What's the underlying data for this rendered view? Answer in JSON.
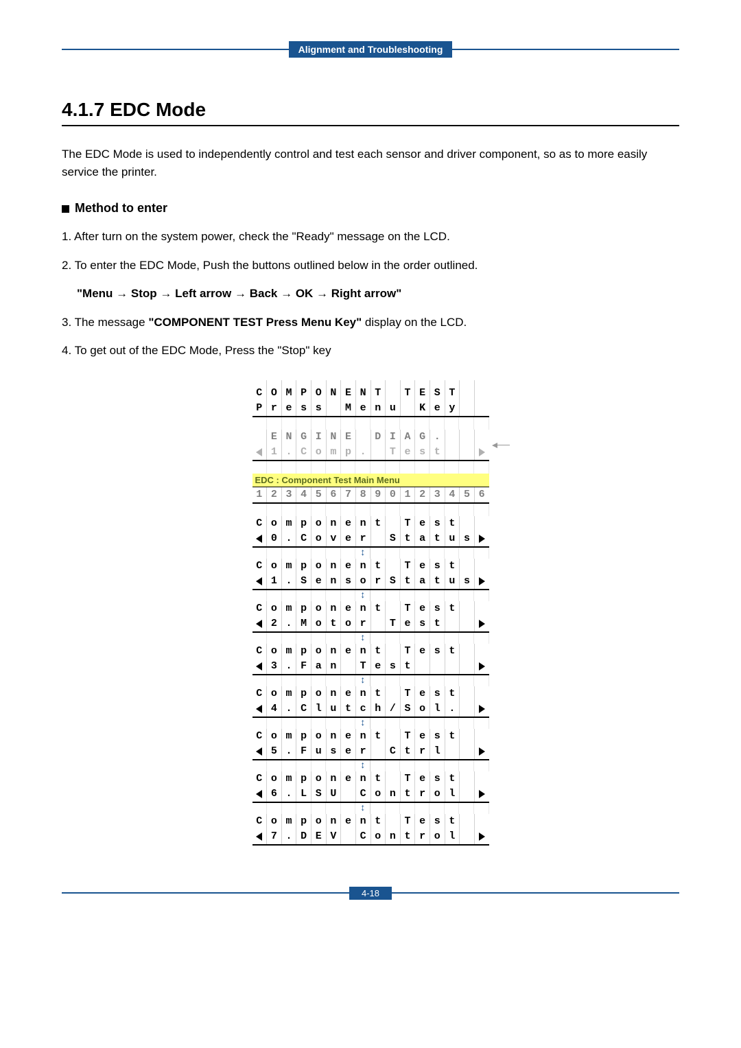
{
  "header": {
    "title": "Alignment and Troubleshooting"
  },
  "section": {
    "number": "4.1.7",
    "title": "EDC Mode",
    "intro": "The EDC Mode is used to independently control and test each sensor and driver component, so as to more easily service the printer."
  },
  "method": {
    "heading": "Method to enter",
    "step1": "1. After turn on the system power, check the \"Ready\" message on the LCD.",
    "step2a": "2. To enter the EDC Mode, Push the buttons outlined below in the order outlined.",
    "step2b": "\"Menu → Stop → Left arrow → Back → OK → Right arrow\"",
    "step3a": "3. The message ",
    "step3b": "\"COMPONENT TEST Press Menu Key\"",
    "step3c": " display on the LCD.",
    "step4": "4. To get out of the EDC Mode, Press the \"Stop\" key"
  },
  "lcd": {
    "initial": {
      "line1": [
        "C",
        "O",
        "M",
        "P",
        "O",
        "N",
        "E",
        "N",
        "T",
        "",
        "T",
        "E",
        "S",
        "T",
        "",
        ""
      ],
      "line2": [
        "P",
        "r",
        "e",
        "s",
        "s",
        "",
        "M",
        "e",
        "n",
        "u",
        "",
        "K",
        "e",
        "y",
        "",
        ""
      ]
    },
    "engine": {
      "line1": [
        "",
        "E",
        "N",
        "G",
        "I",
        "N",
        "E",
        "",
        "D",
        "I",
        "A",
        "G",
        ".",
        "",
        "",
        ""
      ],
      "line2": [
        "1",
        ".",
        "C",
        "o",
        "m",
        "p",
        ".",
        "",
        "T",
        "e",
        "s",
        "t",
        "",
        "",
        "",
        ""
      ]
    },
    "mainMenuLabel": "EDC : Component Test Main Menu",
    "numbers": [
      "1",
      "2",
      "3",
      "4",
      "5",
      "6",
      "7",
      "8",
      "9",
      "0",
      "1",
      "2",
      "3",
      "4",
      "5",
      "6"
    ],
    "items": [
      {
        "num": "0",
        "label": [
          "C",
          "o",
          "v",
          "e",
          "r",
          "",
          "S",
          "t",
          "a",
          "t",
          "u",
          "s",
          ""
        ]
      },
      {
        "num": "1",
        "label": [
          "S",
          "e",
          "n",
          "s",
          "o",
          "r",
          "S",
          "t",
          "a",
          "t",
          "u",
          "s",
          ""
        ]
      },
      {
        "num": "2",
        "label": [
          "M",
          "o",
          "t",
          "o",
          "r",
          "",
          "T",
          "e",
          "s",
          "t",
          "",
          "",
          ""
        ]
      },
      {
        "num": "3",
        "label": [
          "F",
          "a",
          "n",
          "",
          "T",
          "e",
          "s",
          "t",
          "",
          "",
          "",
          "",
          ""
        ]
      },
      {
        "num": "4",
        "label": [
          "C",
          "l",
          "u",
          "t",
          "c",
          "h",
          "/",
          "S",
          "o",
          "l",
          ".",
          "",
          ""
        ]
      },
      {
        "num": "5",
        "label": [
          "F",
          "u",
          "s",
          "e",
          "r",
          "",
          "C",
          "t",
          "r",
          "l",
          "",
          "",
          ""
        ]
      },
      {
        "num": "6",
        "label": [
          "L",
          "S",
          "U",
          "",
          "C",
          "o",
          "n",
          "t",
          "r",
          "o",
          "l",
          "",
          ""
        ]
      },
      {
        "num": "7",
        "label": [
          "D",
          "E",
          "V",
          "",
          "C",
          "o",
          "n",
          "t",
          "r",
          "o",
          "l",
          "",
          ""
        ]
      }
    ],
    "compTest": [
      "C",
      "o",
      "m",
      "p",
      "o",
      "n",
      "e",
      "n",
      "t",
      "",
      "T",
      "e",
      "s",
      "t",
      "",
      ""
    ]
  },
  "footer": {
    "page": "4-18"
  },
  "colors": {
    "accent": "#1a5490",
    "highlight": "#ffff80",
    "menuText": "#5a6b1f"
  }
}
